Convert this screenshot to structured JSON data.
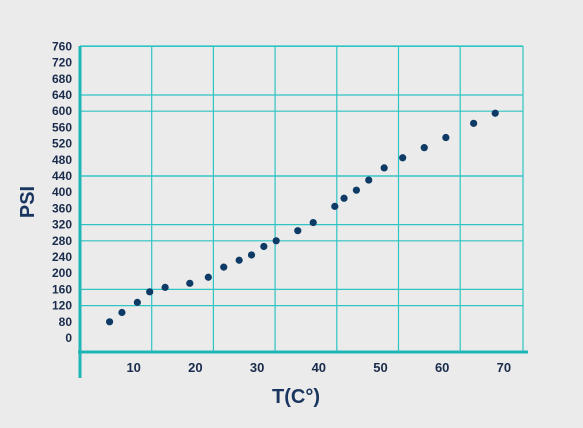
{
  "chart_data": {
    "type": "scatter",
    "title": "",
    "xlabel": "T(C°)",
    "ylabel": "PSI",
    "xlim": [
      0,
      70
    ],
    "ylim": [
      0,
      760
    ],
    "x_ticks": [
      10,
      20,
      30,
      40,
      50,
      60,
      70
    ],
    "y_ticks": [
      0,
      80,
      120,
      160,
      200,
      240,
      280,
      320,
      360,
      400,
      440,
      480,
      520,
      560,
      600,
      640,
      680,
      720,
      760
    ],
    "grid": true,
    "colors": {
      "background": "#ebebeb",
      "grid": "#2ec4c4",
      "axis": "#1fb5b5",
      "points": "#0d3b66",
      "text": "#1a2b4c"
    },
    "series": [
      {
        "name": "",
        "x": [
          3.5,
          5.5,
          8,
          10,
          12.5,
          16.5,
          19.5,
          22,
          24.5,
          26.5,
          28.5,
          30.5,
          34,
          36.5,
          40,
          41.5,
          43.5,
          45.5,
          48,
          51,
          54.5,
          58,
          62.5,
          66
        ],
        "y": [
          80,
          103,
          128,
          154,
          165,
          175,
          190,
          215,
          232,
          245,
          266,
          280,
          305,
          325,
          365,
          385,
          405,
          430,
          460,
          485,
          510,
          535,
          570,
          595
        ]
      }
    ]
  }
}
